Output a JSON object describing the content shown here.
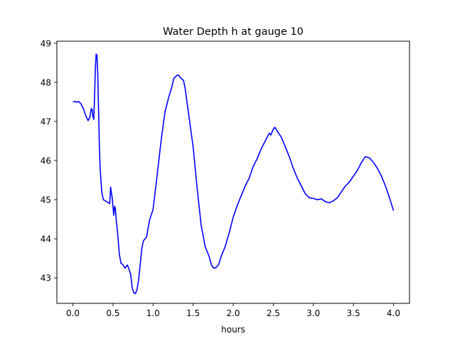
{
  "chart_data": {
    "type": "line",
    "title": "Water Depth h at gauge 10",
    "xlabel": "hours",
    "ylabel": "",
    "xlim": [
      -0.2,
      4.2
    ],
    "ylim": [
      42.35,
      49.05
    ],
    "xticks": [
      0.0,
      0.5,
      1.0,
      1.5,
      2.0,
      2.5,
      3.0,
      3.5,
      4.0
    ],
    "xtick_labels": [
      "0.0",
      "0.5",
      "1.0",
      "1.5",
      "2.0",
      "2.5",
      "3.0",
      "3.5",
      "4.0"
    ],
    "yticks": [
      43,
      44,
      45,
      46,
      47,
      48,
      49
    ],
    "ytick_labels": [
      "43",
      "44",
      "45",
      "46",
      "47",
      "48",
      "49"
    ],
    "grid": false,
    "series": [
      {
        "name": "",
        "color": "#0000ff",
        "x": [
          0.0,
          0.03,
          0.05,
          0.07,
          0.1,
          0.13,
          0.16,
          0.19,
          0.21,
          0.23,
          0.24,
          0.25,
          0.26,
          0.27,
          0.28,
          0.29,
          0.3,
          0.31,
          0.32,
          0.33,
          0.34,
          0.36,
          0.38,
          0.42,
          0.46,
          0.47,
          0.49,
          0.51,
          0.52,
          0.53,
          0.54,
          0.56,
          0.58,
          0.6,
          0.62,
          0.65,
          0.68,
          0.7,
          0.72,
          0.74,
          0.76,
          0.78,
          0.8,
          0.82,
          0.84,
          0.86,
          0.88,
          0.92,
          0.94,
          0.96,
          1.0,
          1.05,
          1.1,
          1.15,
          1.2,
          1.23,
          1.26,
          1.3,
          1.32,
          1.35,
          1.38,
          1.4,
          1.42,
          1.45,
          1.5,
          1.55,
          1.6,
          1.65,
          1.7,
          1.73,
          1.76,
          1.79,
          1.82,
          1.85,
          1.9,
          1.95,
          2.0,
          2.05,
          2.1,
          2.15,
          2.2,
          2.25,
          2.3,
          2.35,
          2.4,
          2.45,
          2.47,
          2.5,
          2.52,
          2.55,
          2.6,
          2.65,
          2.7,
          2.75,
          2.8,
          2.85,
          2.9,
          2.95,
          3.0,
          3.05,
          3.1,
          3.15,
          3.2,
          3.25,
          3.3,
          3.35,
          3.4,
          3.45,
          3.5,
          3.55,
          3.6,
          3.65,
          3.7,
          3.75,
          3.8,
          3.85,
          3.9,
          3.95,
          3.98,
          4.0
        ],
        "y": [
          47.5,
          47.51,
          47.49,
          47.51,
          47.45,
          47.33,
          47.15,
          47.02,
          47.1,
          47.33,
          47.3,
          47.12,
          47.05,
          47.6,
          48.35,
          48.72,
          48.7,
          48.2,
          47.3,
          46.4,
          45.8,
          45.2,
          45.0,
          44.95,
          44.9,
          45.32,
          45.05,
          44.6,
          44.83,
          44.78,
          44.5,
          44.1,
          43.6,
          43.37,
          43.35,
          43.25,
          43.33,
          43.22,
          43.1,
          42.75,
          42.62,
          42.6,
          42.7,
          42.95,
          43.35,
          43.75,
          43.95,
          44.05,
          44.3,
          44.5,
          44.75,
          45.6,
          46.5,
          47.25,
          47.65,
          47.85,
          48.1,
          48.18,
          48.18,
          48.1,
          48.05,
          47.85,
          47.55,
          47.1,
          46.35,
          45.3,
          44.35,
          43.8,
          43.55,
          43.32,
          43.25,
          43.27,
          43.35,
          43.55,
          43.8,
          44.15,
          44.55,
          44.85,
          45.1,
          45.35,
          45.55,
          45.85,
          46.05,
          46.3,
          46.5,
          46.7,
          46.65,
          46.8,
          46.85,
          46.75,
          46.6,
          46.35,
          46.1,
          45.8,
          45.55,
          45.35,
          45.15,
          45.05,
          45.03,
          45.0,
          45.02,
          44.95,
          44.92,
          44.97,
          45.05,
          45.2,
          45.35,
          45.45,
          45.6,
          45.75,
          45.95,
          46.1,
          46.07,
          45.95,
          45.8,
          45.6,
          45.35,
          45.05,
          44.85,
          44.72
        ]
      }
    ]
  }
}
